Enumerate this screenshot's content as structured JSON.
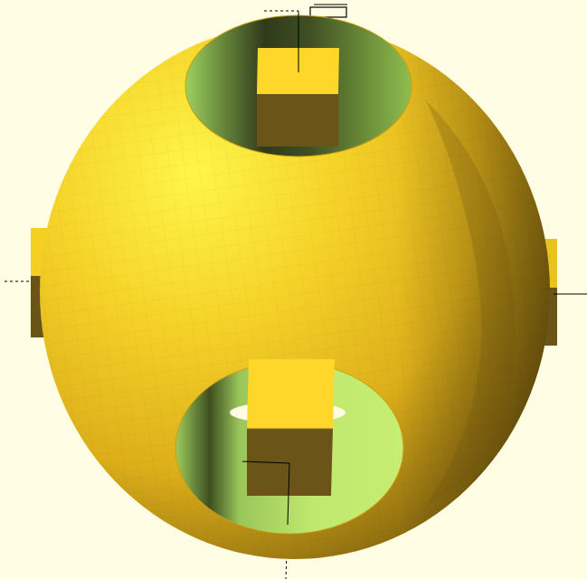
{
  "viewport": {
    "background_color": "#fffee5",
    "axis_color": "#000000"
  },
  "model": {
    "shape": "sphere with cylindrical cutouts and square pegs",
    "colors": {
      "surface_light": "#fff33a",
      "surface_mid": "#f2c81f",
      "surface_dark": "#c99c12",
      "surface_shadow": "#5a4510",
      "peg_top": "#ffd62a",
      "peg_side": "#6b5417",
      "cutout_green": "#b9e86a",
      "cutout_dark": "#55702c"
    }
  }
}
